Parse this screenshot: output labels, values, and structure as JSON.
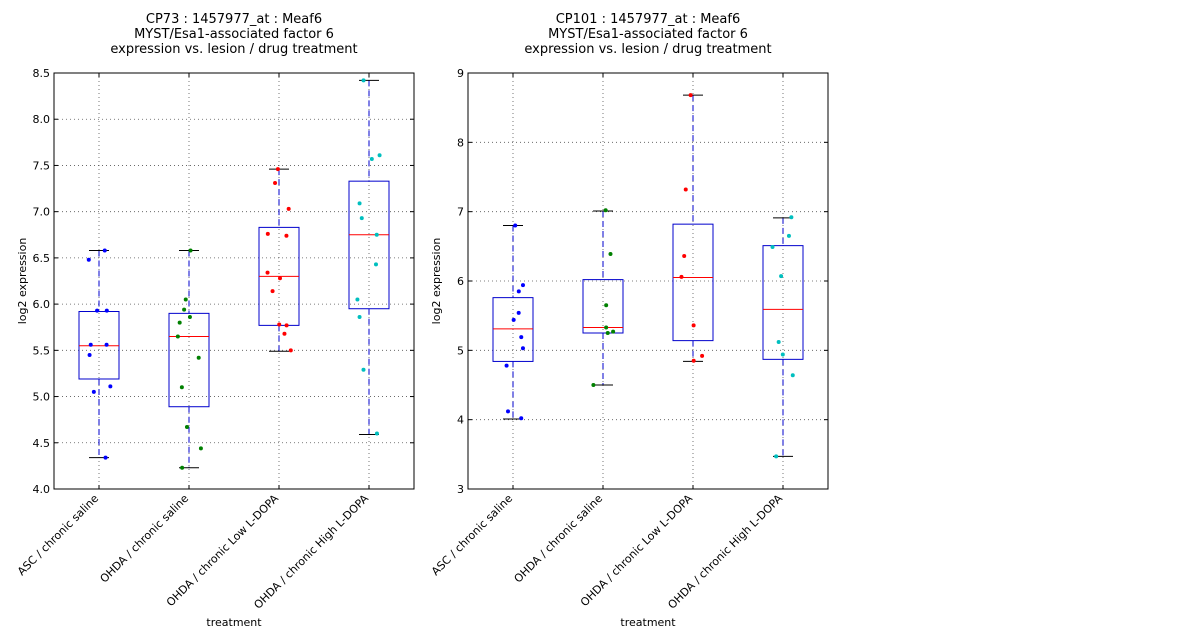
{
  "chart_data": [
    {
      "type": "box",
      "title_lines": [
        "CP73 : 1457977_at : Meaf6",
        "MYST/Esa1-associated factor 6",
        "expression vs. lesion / drug treatment"
      ],
      "xlabel": "treatment",
      "ylabel": "log2 expression",
      "ylim": [
        4.0,
        8.5
      ],
      "yticks": [
        4.0,
        4.5,
        5.0,
        5.5,
        6.0,
        6.5,
        7.0,
        7.5,
        8.0,
        8.5
      ],
      "ytick_labels": [
        "4.0",
        "4.5",
        "5.0",
        "5.5",
        "6.0",
        "6.5",
        "7.0",
        "7.5",
        "8.0",
        "8.5"
      ],
      "grid": true,
      "categories": [
        "ASC / chronic saline",
        "OHDA / chronic saline",
        "OHDA / chronic Low L-DOPA",
        "OHDA / chronic High L-DOPA"
      ],
      "boxes": [
        {
          "whisker_low": 4.34,
          "q1": 5.19,
          "median": 5.55,
          "q3": 5.92,
          "whisker_high": 6.58,
          "points": [
            6.58,
            6.48,
            5.93,
            5.93,
            5.56,
            5.56,
            5.45,
            5.11,
            5.05,
            4.34
          ]
        },
        {
          "whisker_low": 4.23,
          "q1": 4.89,
          "median": 5.65,
          "q3": 5.9,
          "whisker_high": 6.58,
          "points": [
            6.58,
            6.05,
            5.94,
            5.86,
            5.8,
            5.65,
            5.42,
            5.1,
            4.67,
            4.44,
            4.23
          ]
        },
        {
          "whisker_low": 5.49,
          "q1": 5.77,
          "median": 6.3,
          "q3": 6.83,
          "whisker_high": 7.46,
          "points": [
            7.46,
            7.31,
            7.03,
            6.76,
            6.74,
            6.34,
            6.28,
            6.14,
            5.78,
            5.77,
            5.68,
            5.5
          ]
        },
        {
          "whisker_low": 4.59,
          "q1": 5.95,
          "median": 6.75,
          "q3": 7.33,
          "whisker_high": 8.42,
          "points": [
            8.42,
            7.61,
            7.57,
            7.09,
            6.93,
            6.75,
            6.43,
            6.05,
            5.86,
            5.29,
            4.6
          ]
        }
      ]
    },
    {
      "type": "box",
      "title_lines": [
        "CP101 : 1457977_at : Meaf6",
        "MYST/Esa1-associated factor 6",
        "expression vs. lesion / drug treatment"
      ],
      "xlabel": "treatment",
      "ylabel": "log2 expression",
      "ylim": [
        3,
        9
      ],
      "yticks": [
        3,
        4,
        5,
        6,
        7,
        8,
        9
      ],
      "ytick_labels": [
        "3",
        "4",
        "5",
        "6",
        "7",
        "8",
        "9"
      ],
      "grid": true,
      "categories": [
        "ASC / chronic saline",
        "OHDA / chronic saline",
        "OHDA / chronic Low L-DOPA",
        "OHDA / chronic High L-DOPA"
      ],
      "boxes": [
        {
          "whisker_low": 4.01,
          "q1": 4.84,
          "median": 5.31,
          "q3": 5.76,
          "whisker_high": 6.8,
          "points": [
            6.8,
            5.94,
            5.85,
            5.54,
            5.44,
            5.19,
            5.03,
            4.78,
            4.12,
            4.02
          ]
        },
        {
          "whisker_low": 4.5,
          "q1": 5.25,
          "median": 5.33,
          "q3": 6.02,
          "whisker_high": 7.01,
          "points": [
            7.02,
            6.39,
            5.65,
            5.33,
            5.27,
            5.25,
            4.5
          ]
        },
        {
          "whisker_low": 4.84,
          "q1": 5.14,
          "median": 6.05,
          "q3": 6.82,
          "whisker_high": 8.68,
          "points": [
            8.68,
            7.32,
            6.36,
            6.06,
            5.36,
            4.92,
            4.85
          ]
        },
        {
          "whisker_low": 3.47,
          "q1": 4.87,
          "median": 5.59,
          "q3": 6.51,
          "whisker_high": 6.91,
          "points": [
            6.92,
            6.65,
            6.49,
            6.07,
            5.12,
            4.94,
            4.64,
            3.47
          ]
        }
      ]
    }
  ],
  "colors": {
    "box": "#0000cc",
    "median": "#ff0000",
    "whisker_line": "#0000cc",
    "cap": "#000000",
    "grid": "#555555",
    "groups": [
      "#0000ff",
      "#008000",
      "#ff0000",
      "#00bfbf"
    ]
  }
}
